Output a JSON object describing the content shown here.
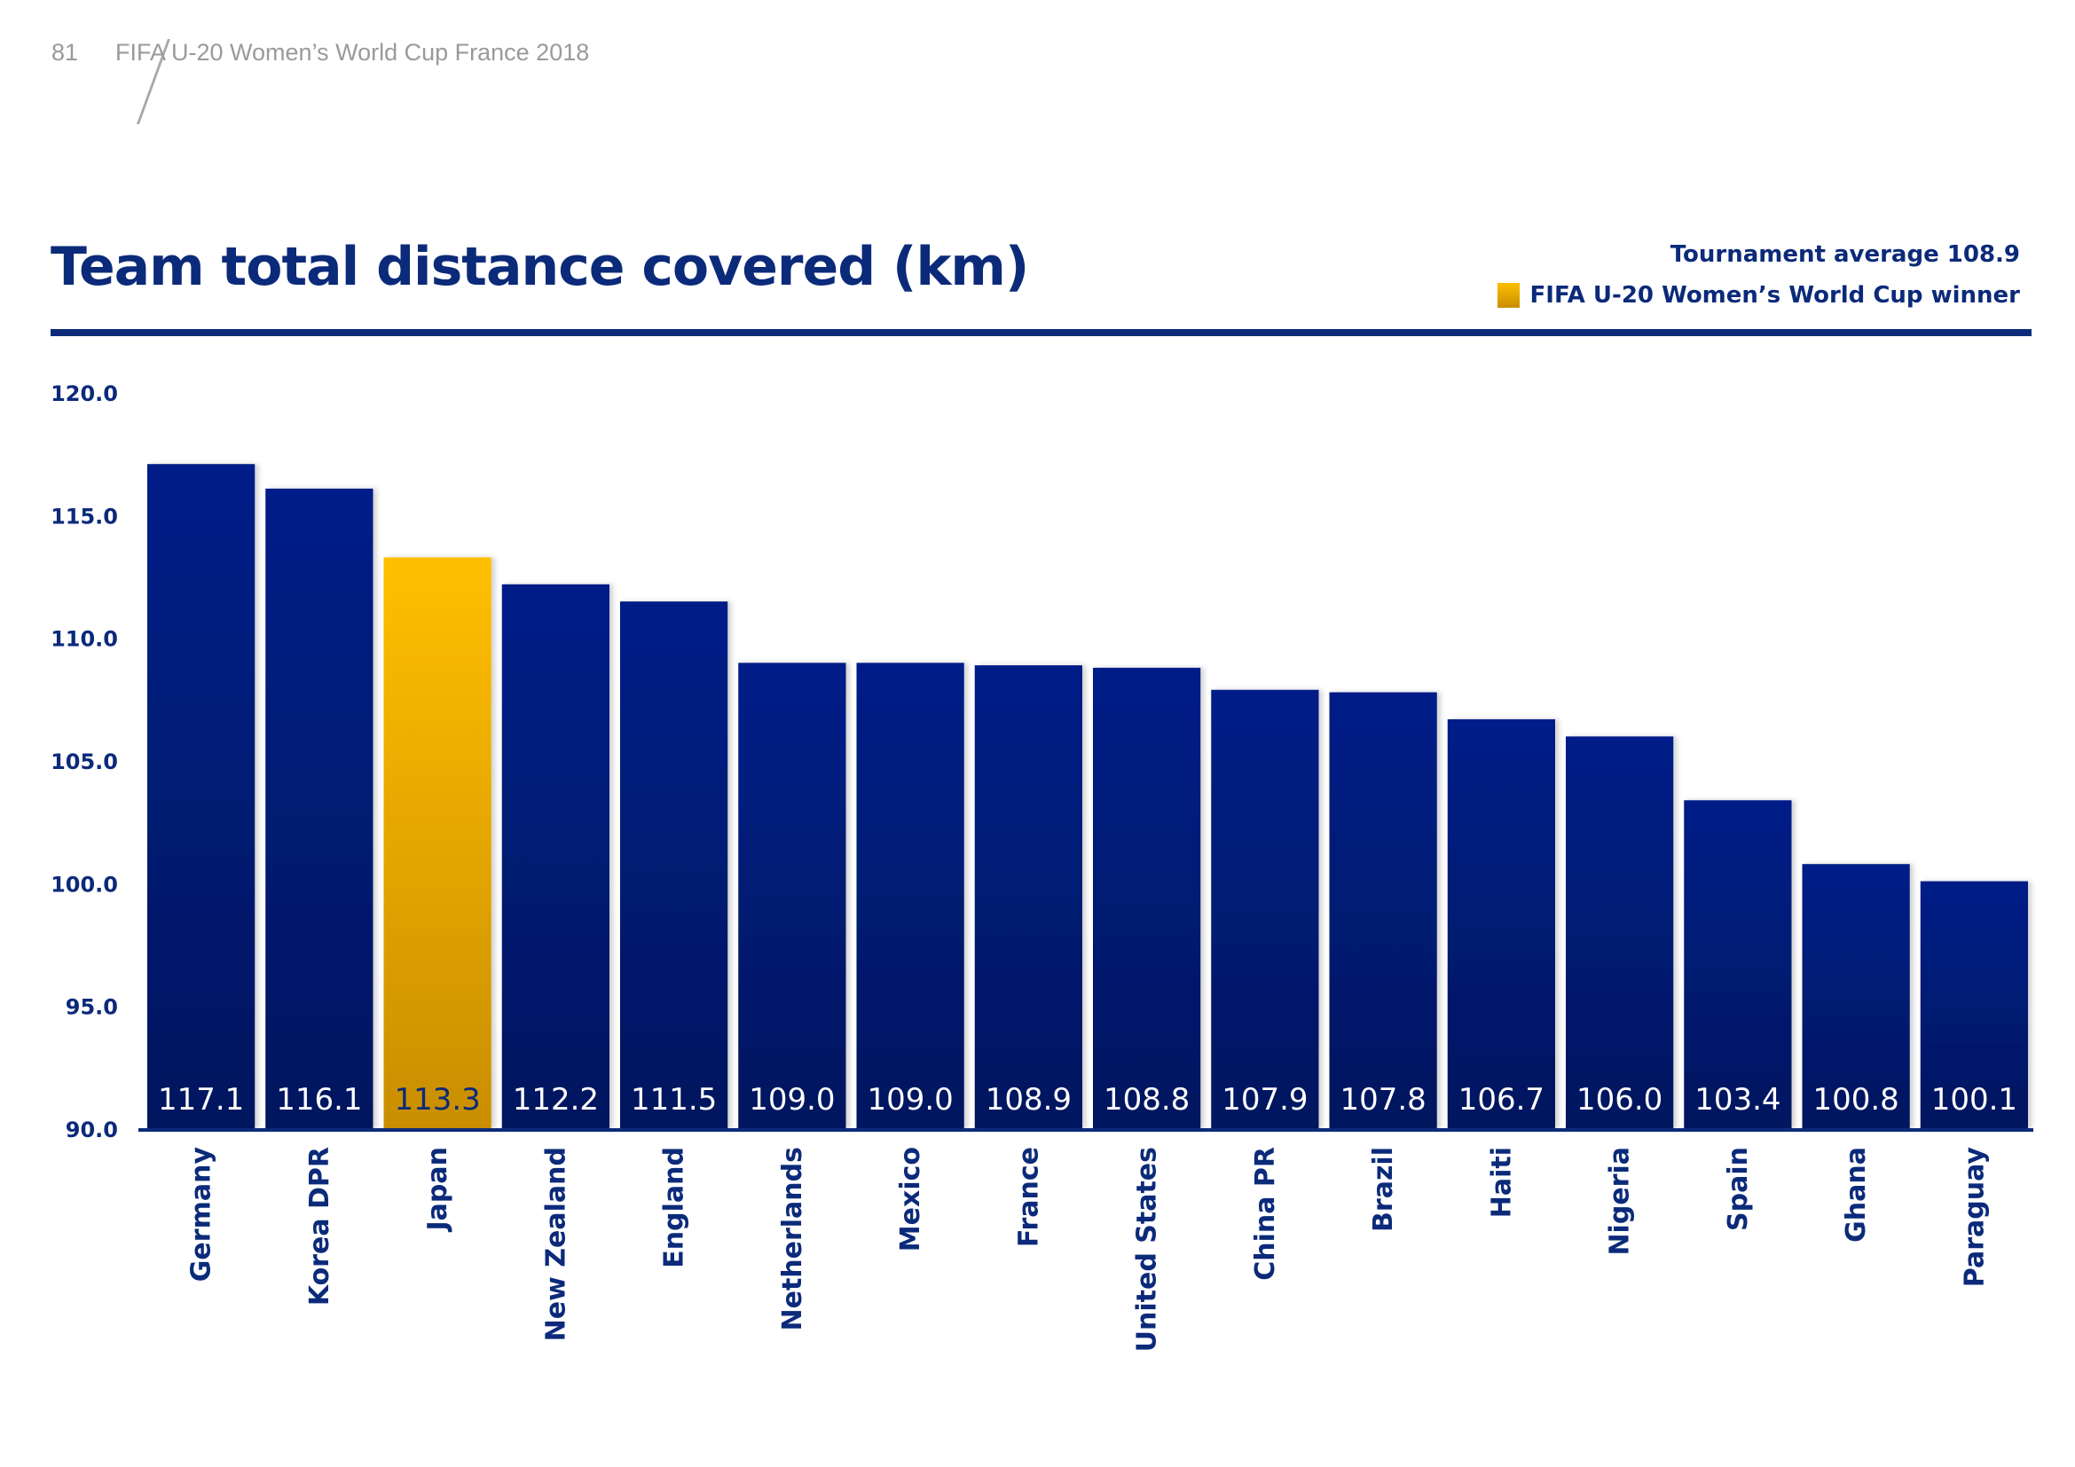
{
  "running_header": {
    "page_number": "81",
    "publication": "FIFA U-20 Women’s World Cup France 2018"
  },
  "legend": {
    "average_note": "Tournament average 108.9",
    "winner_label": "FIFA U-20 Women’s World Cup winner"
  },
  "colors": {
    "bar": "#021b80",
    "bar_dark": "#02165e",
    "winner": "#ffbf00",
    "winner_dark": "#c98e00",
    "text": "#0b2a7a",
    "header_gray": "#9a9a9a"
  },
  "chart_data": {
    "type": "bar",
    "title": "Team total distance covered (km)",
    "xlabel": "",
    "ylabel": "",
    "ylim": [
      90,
      120
    ],
    "yticks": [
      "120.0",
      "115.0",
      "110.0",
      "105.0",
      "100.0",
      "95.0",
      "90.0"
    ],
    "ytick_values": [
      120,
      115,
      110,
      105,
      100,
      95,
      90
    ],
    "grid": false,
    "legend_position": "top-right",
    "tournament_average": 108.9,
    "highlight_category": "Japan",
    "categories": [
      "Germany",
      "Korea DPR",
      "Japan",
      "New Zealand",
      "England",
      "Netherlands",
      "Mexico",
      "France",
      "United States",
      "China PR",
      "Brazil",
      "Haiti",
      "Nigeria",
      "Spain",
      "Ghana",
      "Paraguay"
    ],
    "values": [
      117.1,
      116.1,
      113.3,
      112.2,
      111.5,
      109.0,
      109.0,
      108.9,
      108.8,
      107.9,
      107.8,
      106.7,
      106.0,
      103.4,
      100.8,
      100.1
    ],
    "value_labels": [
      "117.1",
      "116.1",
      "113.3",
      "112.2",
      "111.5",
      "109.0",
      "109.0",
      "108.9",
      "108.8",
      "107.9",
      "107.8",
      "106.7",
      "106.0",
      "103.4",
      "100.8",
      "100.1"
    ]
  }
}
